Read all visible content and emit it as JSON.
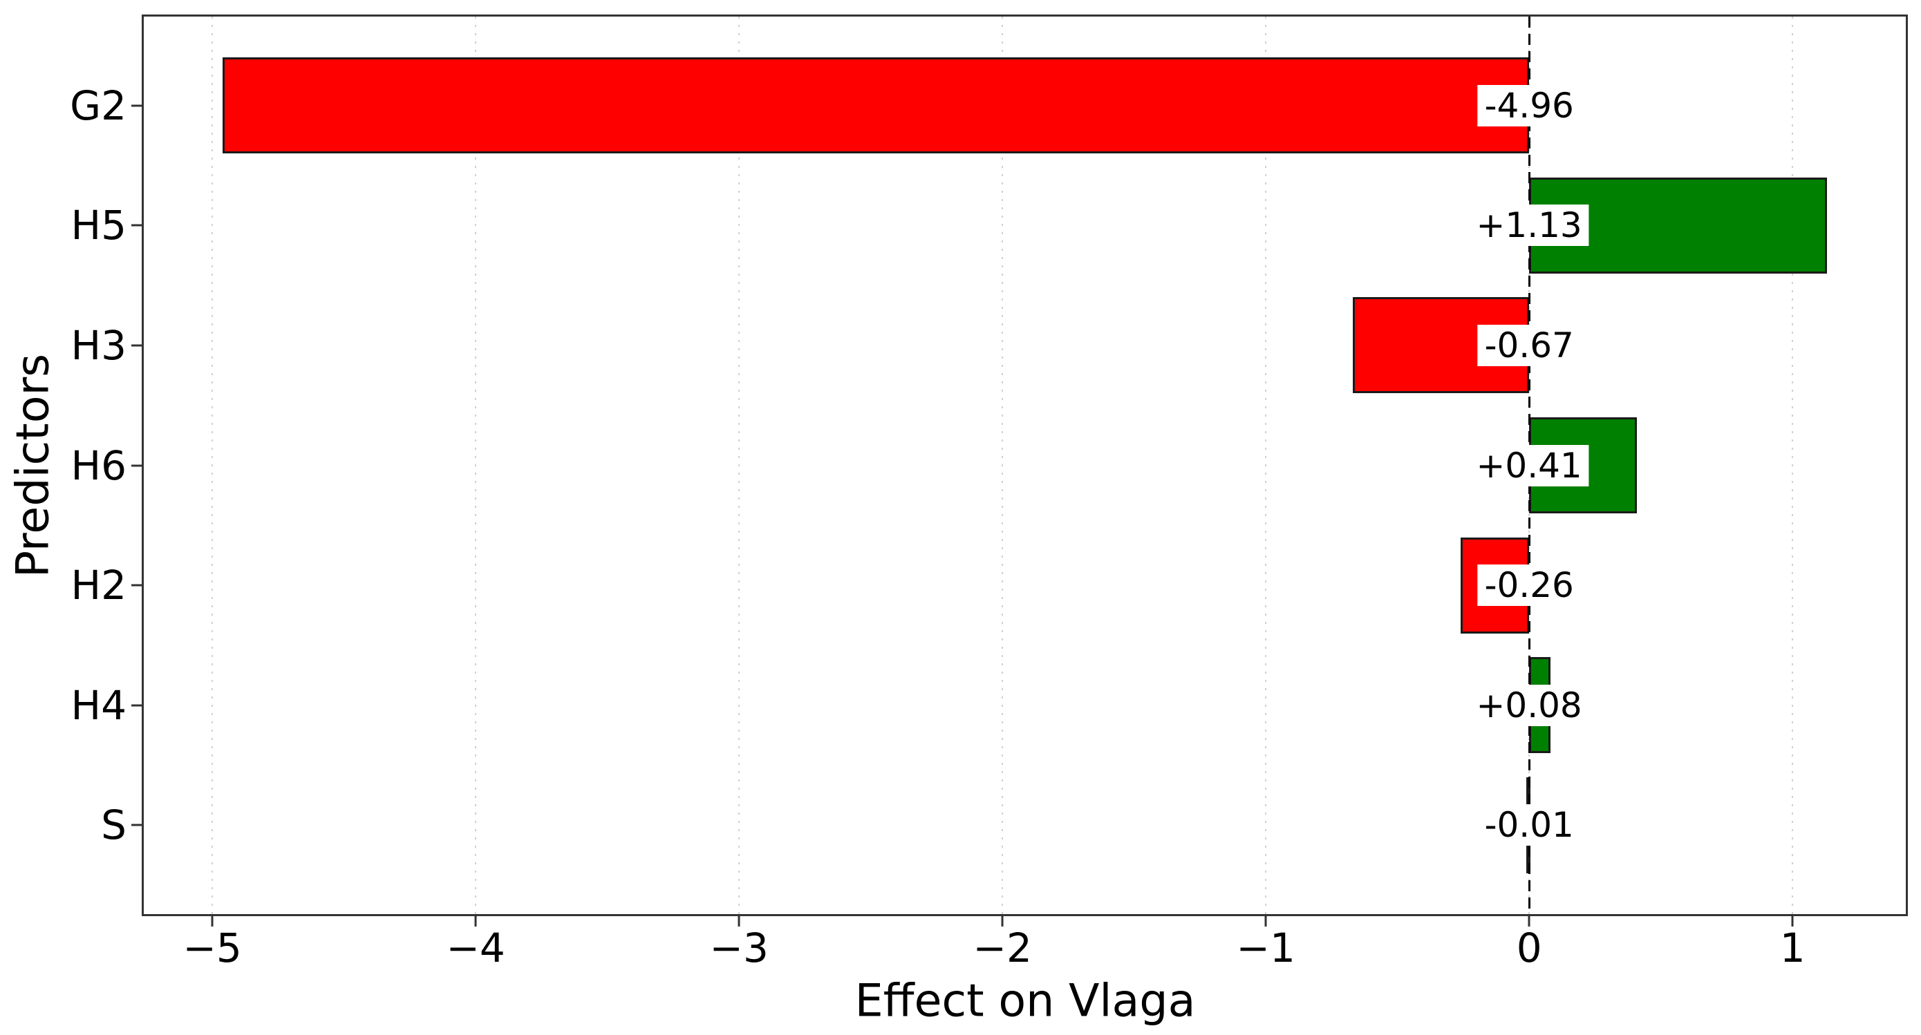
{
  "chart_data": {
    "type": "bar",
    "orientation": "horizontal",
    "title": "",
    "xlabel": "Effect on Vlaga",
    "ylabel": "Predictors",
    "categories": [
      "G2",
      "H5",
      "H3",
      "H6",
      "H2",
      "H4",
      "S"
    ],
    "series": [
      {
        "name": "Effect on Vlaga",
        "values": [
          -4.96,
          1.13,
          -0.67,
          0.41,
          -0.26,
          0.08,
          -0.01
        ]
      }
    ],
    "bar_labels": [
      "-4.96",
      "+1.13",
      "-0.67",
      "+0.41",
      "-0.26",
      "+0.08",
      "-0.01"
    ],
    "xlim": [
      -5.26,
      1.43
    ],
    "xticks": [
      {
        "label": "−5",
        "value": -5
      },
      {
        "label": "−4",
        "value": -4
      },
      {
        "label": "−3",
        "value": -3
      },
      {
        "label": "−2",
        "value": -2
      },
      {
        "label": "−1",
        "value": -1
      },
      {
        "label": "0",
        "value": 0
      },
      {
        "label": "1",
        "value": 1
      }
    ],
    "grid": {
      "axis": "x",
      "style": "dotted",
      "color": "#d0d0d0"
    },
    "zero_line": {
      "style": "dashed",
      "color": "#000000",
      "at": 0
    },
    "legend_position": "none",
    "colors": {
      "positive": "#008000",
      "negative": "#ff0000",
      "bar_edge": "#1a1a1a",
      "label_bg": "#ffffff",
      "text": "#000000",
      "spine": "#333333"
    }
  }
}
